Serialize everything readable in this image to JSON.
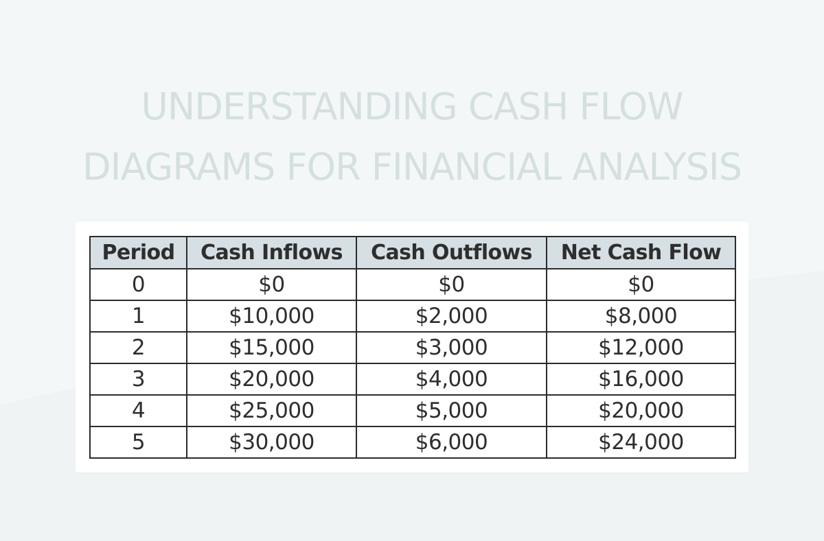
{
  "title": {
    "line1": "UNDERSTANDING CASH FLOW",
    "line2": "DIAGRAMS FOR FINANCIAL ANALYSIS"
  },
  "table": {
    "headers": [
      "Period",
      "Cash Inflows",
      "Cash Outflows",
      "Net Cash Flow"
    ],
    "rows": [
      [
        "0",
        "$0",
        "$0",
        "$0"
      ],
      [
        "1",
        "$10,000",
        "$2,000",
        "$8,000"
      ],
      [
        "2",
        "$15,000",
        "$3,000",
        "$12,000"
      ],
      [
        "3",
        "$20,000",
        "$4,000",
        "$16,000"
      ],
      [
        "4",
        "$25,000",
        "$5,000",
        "$20,000"
      ],
      [
        "5",
        "$30,000",
        "$6,000",
        "$24,000"
      ]
    ]
  },
  "colors": {
    "background": "#f4f7f7",
    "title_text": "#d4e0df",
    "header_fill": "#d6dfe3",
    "border": "#2b2b2b"
  }
}
